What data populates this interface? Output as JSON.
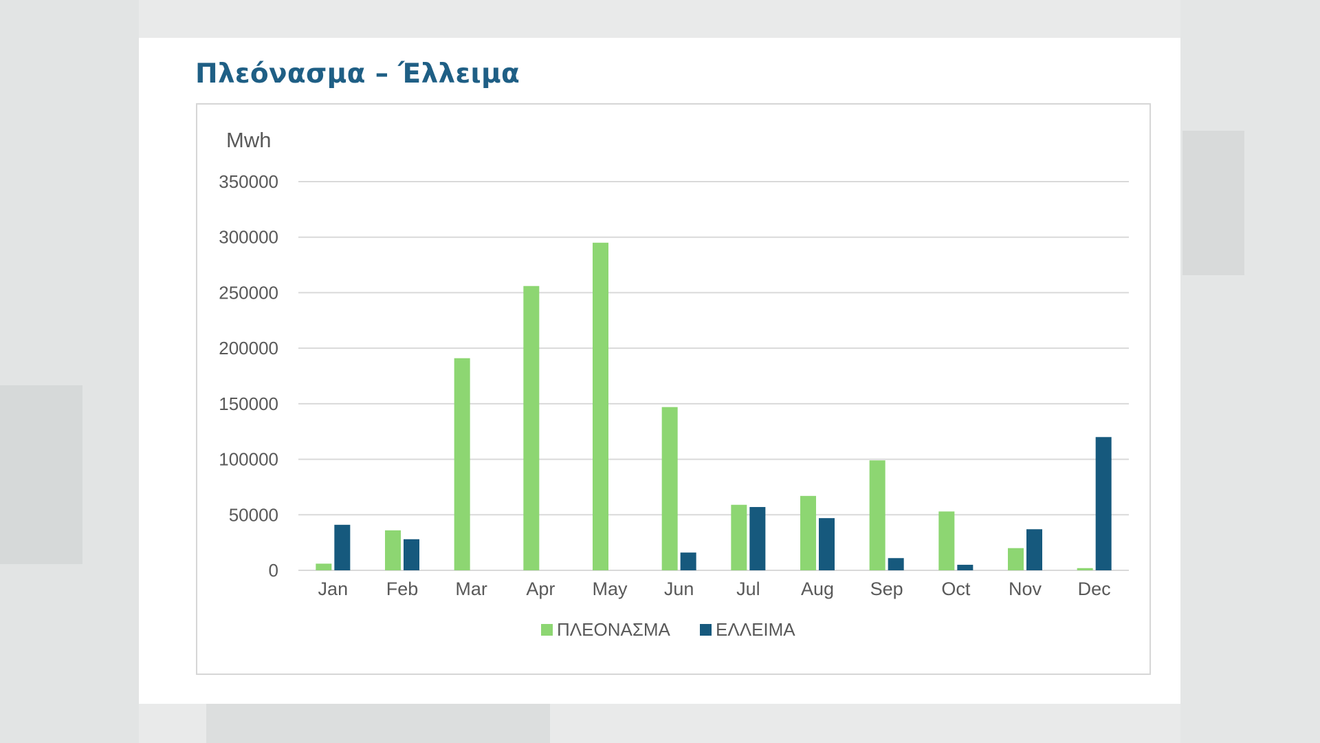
{
  "slide": {
    "title": "Πλεόνασμα – Έλλειμα"
  },
  "colors": {
    "title": "#1f5f85",
    "surplus": "#8dd672",
    "deficit": "#16597d",
    "grid": "#d9d9d9",
    "text": "#595959"
  },
  "chart_data": {
    "type": "bar",
    "title": "",
    "ylabel": "Mwh",
    "xlabel": "",
    "ylim": [
      0,
      350000
    ],
    "yticks": [
      "0",
      "50000",
      "100000",
      "150000",
      "200000",
      "250000",
      "300000",
      "350000"
    ],
    "grid": true,
    "legend_position": "bottom",
    "categories": [
      "Jan",
      "Feb",
      "Mar",
      "Apr",
      "May",
      "Jun",
      "Jul",
      "Aug",
      "Sep",
      "Oct",
      "Nov",
      "Dec"
    ],
    "series": [
      {
        "name": "ΠΛΕΟΝΑΣΜΑ",
        "color": "#8dd672",
        "values": [
          6000,
          36000,
          191000,
          256000,
          295000,
          147000,
          59000,
          67000,
          99000,
          53000,
          20000,
          2000
        ]
      },
      {
        "name": "ΕΛΛΕΙΜΑ",
        "color": "#16597d",
        "values": [
          41000,
          28000,
          0,
          0,
          0,
          16000,
          57000,
          47000,
          11000,
          5000,
          37000,
          120000
        ]
      }
    ]
  }
}
